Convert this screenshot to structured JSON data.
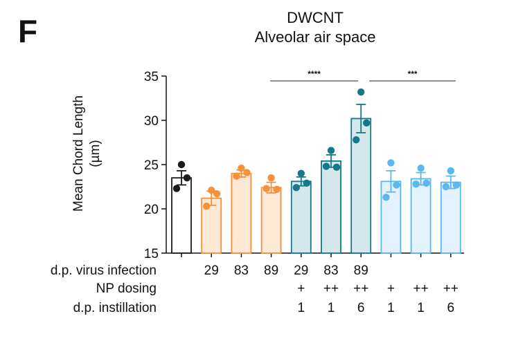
{
  "panel_letter": "F",
  "chart_data": {
    "type": "bar",
    "title": [
      "DWCNT",
      "Alveolar air space"
    ],
    "ylabel": [
      "Mean Chord Length",
      "(µm)"
    ],
    "ylim": [
      15,
      35
    ],
    "yticks": [
      15,
      20,
      25,
      30,
      35
    ],
    "bars": [
      {
        "value": 23.5,
        "sem": 0.8,
        "points": [
          25.0,
          23.5,
          22.3
        ],
        "color": "#1a1a1a",
        "fill": "#ffffff"
      },
      {
        "value": 21.2,
        "sem": 0.8,
        "points": [
          22.1,
          21.7,
          20.3
        ],
        "color": "#f4913a",
        "fill": "#fde9d6"
      },
      {
        "value": 24.0,
        "sem": 0.4,
        "points": [
          24.6,
          24.1,
          23.7
        ],
        "color": "#f4913a",
        "fill": "#fde9d6"
      },
      {
        "value": 22.4,
        "sem": 0.6,
        "points": [
          23.5,
          22.2,
          22.3
        ],
        "color": "#f4913a",
        "fill": "#fde9d6"
      },
      {
        "value": 23.1,
        "sem": 0.5,
        "points": [
          24.0,
          22.9,
          22.4
        ],
        "color": "#16788a",
        "fill": "#d4e8ec"
      },
      {
        "value": 25.4,
        "sem": 0.7,
        "points": [
          26.6,
          24.7,
          24.8
        ],
        "color": "#16788a",
        "fill": "#d4e8ec"
      },
      {
        "value": 30.2,
        "sem": 1.6,
        "points": [
          33.2,
          29.7,
          27.8
        ],
        "color": "#16788a",
        "fill": "#d4e8ec"
      },
      {
        "value": 23.1,
        "sem": 1.2,
        "points": [
          25.2,
          22.7,
          21.3
        ],
        "color": "#5cb8ec",
        "fill": "#e3f2fc"
      },
      {
        "value": 23.4,
        "sem": 0.7,
        "points": [
          24.6,
          22.9,
          22.8
        ],
        "color": "#5cb8ec",
        "fill": "#e3f2fc"
      },
      {
        "value": 23.0,
        "sem": 0.7,
        "points": [
          24.3,
          22.7,
          22.5
        ],
        "color": "#5cb8ec",
        "fill": "#e3f2fc"
      }
    ],
    "significance": [
      {
        "from_bar": 4,
        "to_bar": 6,
        "label": "****"
      },
      {
        "from_bar": 6,
        "to_bar": 9,
        "label": "***"
      }
    ],
    "category_rows": [
      {
        "label": "d.p. virus infection",
        "values": [
          "",
          "29",
          "83",
          "89",
          "29",
          "83",
          "89",
          "",
          "",
          ""
        ]
      },
      {
        "label": "NP dosing",
        "values": [
          "",
          "",
          "",
          "",
          "+",
          "++",
          "++",
          "+",
          "++",
          "++"
        ]
      },
      {
        "label": "d.p. instillation",
        "values": [
          "",
          "",
          "",
          "",
          "1",
          "1",
          "6",
          "1",
          "1",
          "6"
        ]
      }
    ]
  }
}
